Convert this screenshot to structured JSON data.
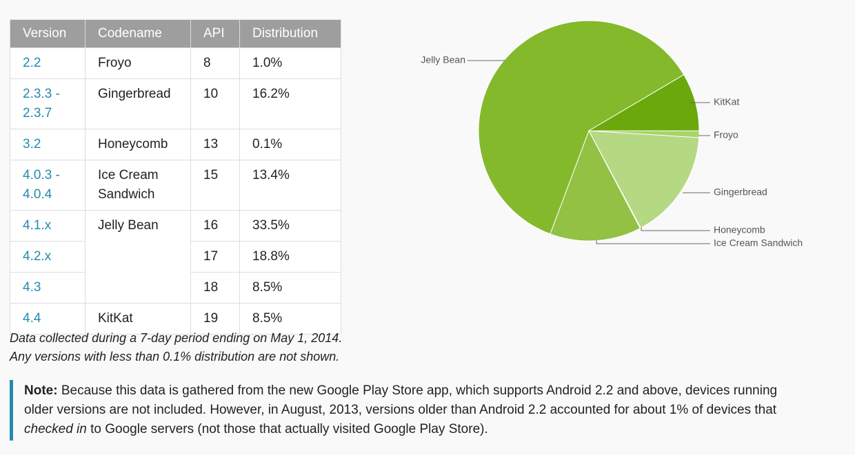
{
  "table": {
    "headers": [
      "Version",
      "Codename",
      "API",
      "Distribution"
    ],
    "rows": [
      {
        "version": "2.2",
        "codename": "Froyo",
        "api": "8",
        "distribution": "1.0%"
      },
      {
        "version": "2.3.3 - 2.3.7",
        "codename": "Gingerbread",
        "api": "10",
        "distribution": "16.2%"
      },
      {
        "version": "3.2",
        "codename": "Honeycomb",
        "api": "13",
        "distribution": "0.1%"
      },
      {
        "version": "4.0.3 - 4.0.4",
        "codename": "Ice Cream Sandwich",
        "api": "15",
        "distribution": "13.4%"
      },
      {
        "version": "4.1.x",
        "codename": "Jelly Bean",
        "api": "16",
        "distribution": "33.5%"
      },
      {
        "version": "4.2.x",
        "api": "17",
        "distribution": "18.8%"
      },
      {
        "version": "4.3",
        "api": "18",
        "distribution": "8.5%"
      },
      {
        "version": "4.4",
        "codename": "KitKat",
        "api": "19",
        "distribution": "8.5%"
      }
    ]
  },
  "chart_data": {
    "type": "pie",
    "categories": [
      "Froyo",
      "Gingerbread",
      "Honeycomb",
      "Ice Cream Sandwich",
      "Jelly Bean",
      "KitKat"
    ],
    "values": [
      1.0,
      16.2,
      0.1,
      13.4,
      60.8,
      8.5
    ],
    "colors": [
      "#a9d36a",
      "#b5d883",
      "#a3cc5f",
      "#93c144",
      "#84b92c",
      "#6aa80c"
    ]
  },
  "caption": [
    "Data collected during a 7-day period ending on May 1, 2014.",
    "Any versions with less than 0.1% distribution are not shown."
  ],
  "note": {
    "label": "Note:",
    "text1": "Because this data is gathered from the new Google Play Store app, which supports Android 2.2 and above, devices running older versions are not included. However, in August, 2013, versions older than Android 2.2 accounted for about 1% of devices that",
    "emphasis": "checked in",
    "text2": "to Google servers (not those that actually visited Google Play Store)."
  }
}
